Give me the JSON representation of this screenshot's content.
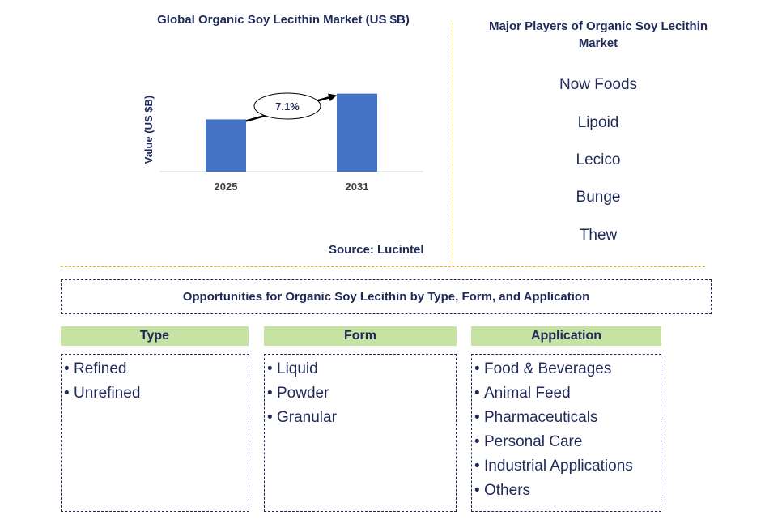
{
  "chart": {
    "title": "Global Organic Soy Lecithin Market (US $B)",
    "ylabel": "Value (US $B)",
    "cagr_label": "7.1%",
    "source": "Source: Lucintel"
  },
  "chart_data": {
    "type": "bar",
    "categories": [
      "2025",
      "2031"
    ],
    "values": [
      0.67,
      1.0
    ],
    "title": "Global Organic Soy Lecithin Market (US $B)",
    "xlabel": "",
    "ylabel": "Value (US $B)",
    "annotation": "7.1%",
    "ylim": [
      0,
      1.1
    ],
    "grid": false,
    "bar_color": "#4472c4"
  },
  "players": {
    "title": "Major Players of Organic Soy Lecithin Market",
    "items": [
      "Now Foods",
      "Lipoid",
      "Lecico",
      "Bunge",
      "Thew"
    ]
  },
  "opportunities": {
    "title": "Opportunities for Organic Soy Lecithin by Type, Form, and Application",
    "columns": [
      {
        "header": "Type",
        "items": [
          "Refined",
          "Unrefined"
        ]
      },
      {
        "header": "Form",
        "items": [
          "Liquid",
          "Powder",
          "Granular"
        ]
      },
      {
        "header": "Application",
        "items": [
          "Food & Beverages",
          "Animal Feed",
          "Pharmaceuticals",
          "Personal Care",
          "Industrial Applications",
          "Others"
        ]
      }
    ]
  },
  "colors": {
    "navy": "#1f2a5a",
    "bar": "#4472c4",
    "header_green": "#c6e3a4",
    "divider_gold": "#f0b400"
  }
}
